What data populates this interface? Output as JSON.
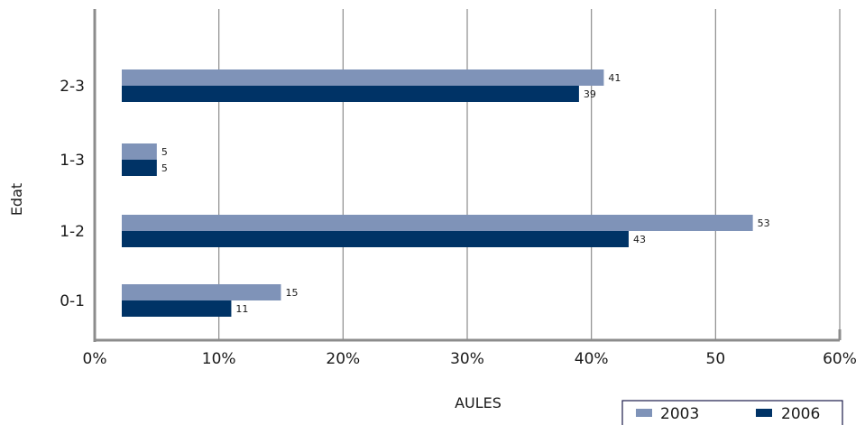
{
  "chart_data": {
    "type": "bar",
    "orientation": "horizontal",
    "categories": [
      "0-1",
      "1-2",
      "1-3",
      "2-3"
    ],
    "series": [
      {
        "name": "2003",
        "values": [
          15,
          53,
          5,
          41
        ],
        "labels": [
          "15",
          "53",
          "5",
          "41"
        ],
        "color": "#7f93b8"
      },
      {
        "name": "2006",
        "values": [
          11,
          43,
          5,
          39
        ],
        "labels": [
          "11",
          "43",
          "5",
          "39"
        ],
        "color": "#003366"
      }
    ],
    "xlabel": "AULES",
    "ylabel": "Edat",
    "xlim": [
      0,
      60
    ],
    "xticks": [
      0,
      10,
      20,
      30,
      40,
      50,
      60
    ],
    "xtick_labels": [
      "0%",
      "10%",
      "20%",
      "30%",
      "40%",
      "50",
      "60%"
    ],
    "grid": "vertical",
    "legend_position": "bottom-right"
  }
}
